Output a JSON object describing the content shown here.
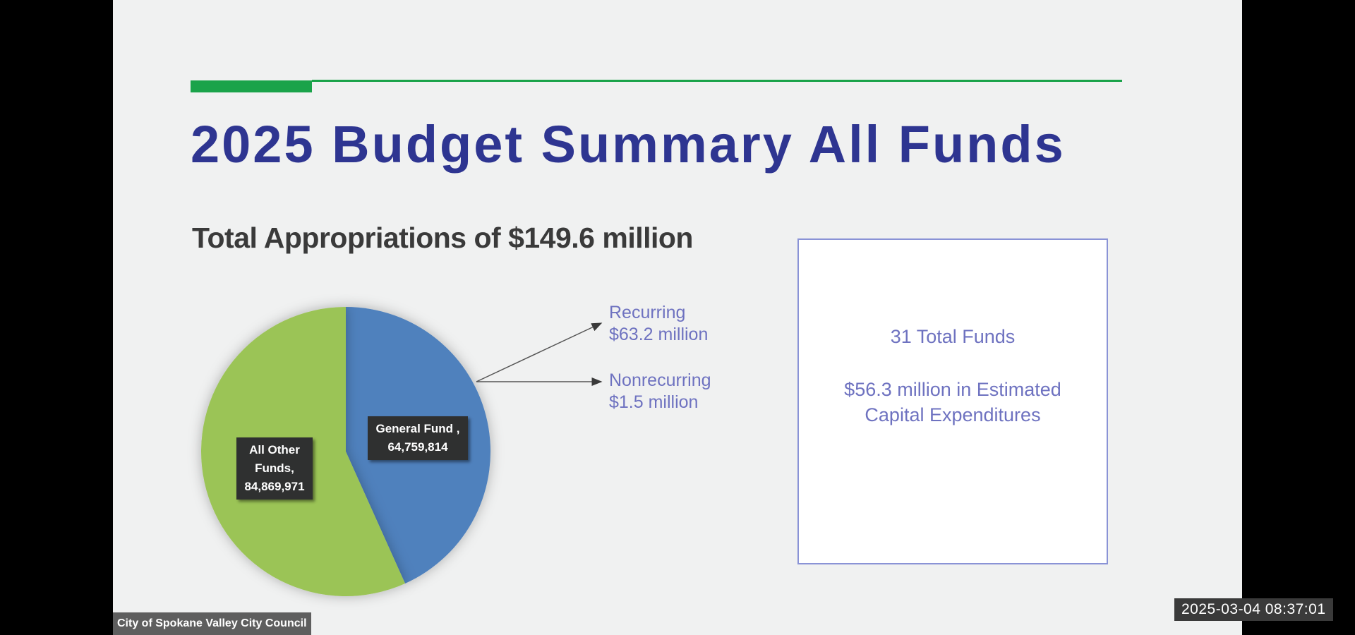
{
  "slide": {
    "title": "2025 Budget Summary All Funds",
    "subtitle": "Total Appropriations of $149.6 million",
    "accent_color": "#1aa34a",
    "title_color": "#2e3591"
  },
  "chart_data": {
    "type": "pie",
    "slices": [
      {
        "category": "General Fund",
        "value": 64759814,
        "value_label": "64,759,814",
        "label_lines": [
          "General Fund ,",
          "64,759,814"
        ],
        "color": "#4f81bd"
      },
      {
        "category": "All Other Funds",
        "value": 84869971,
        "value_label": "84,869,971",
        "label_lines": [
          "All Other",
          "Funds,",
          "84,869,971"
        ],
        "color": "#9bc456"
      }
    ],
    "start_angle_deg": 0,
    "direction": "clockwise"
  },
  "general_fund_breakdown": {
    "recurring": {
      "label": "Recurring",
      "amount": "$63.2 million"
    },
    "nonrecurring": {
      "label": "Nonrecurring",
      "amount": "$1.5 million"
    }
  },
  "info_box": {
    "total_funds": "31 Total Funds",
    "capital_line1": "$56.3 million in Estimated",
    "capital_line2": "Capital Expenditures"
  },
  "overlay": {
    "source_caption": "City of Spokane Valley City Council",
    "timestamp": "2025-03-04 08:37:01"
  }
}
